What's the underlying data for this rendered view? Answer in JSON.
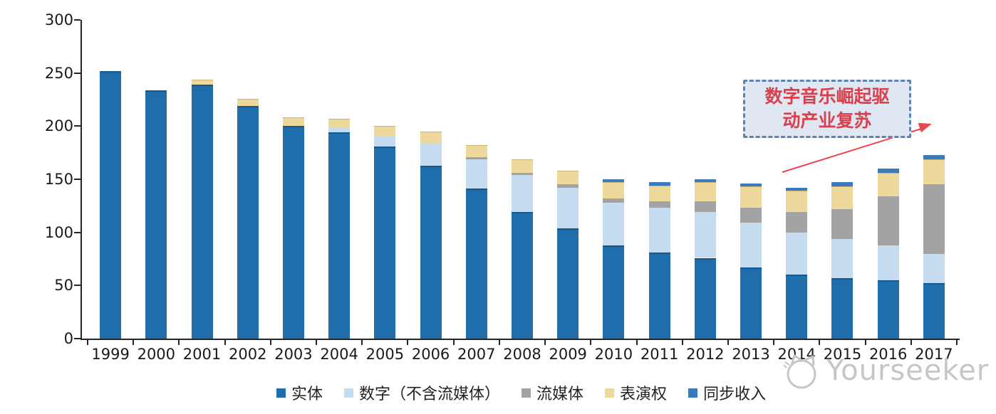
{
  "chart_data": {
    "type": "bar",
    "stacked": true,
    "title": "",
    "xlabel": "",
    "ylabel": "",
    "categories": [
      "1999",
      "2000",
      "2001",
      "2002",
      "2003",
      "2004",
      "2005",
      "2006",
      "2007",
      "2008",
      "2009",
      "2010",
      "2011",
      "2012",
      "2013",
      "2014",
      "2015",
      "2016",
      "2017"
    ],
    "series": [
      {
        "name": "实体",
        "color": "#1F6DAB",
        "values": [
          252,
          234,
          239,
          219,
          200,
          194,
          181,
          163,
          141,
          119,
          104,
          88,
          81,
          76,
          67,
          60,
          57,
          55,
          52
        ]
      },
      {
        "name": "数字（不含流媒体）",
        "color": "#C5DBF0",
        "values": [
          0,
          0,
          0,
          0,
          0,
          4,
          9,
          21,
          28,
          35,
          38,
          40,
          42,
          43,
          42,
          40,
          37,
          33,
          28
        ]
      },
      {
        "name": "流媒体",
        "color": "#A3A3A3",
        "values": [
          0,
          0,
          0,
          0,
          0,
          0,
          0,
          0,
          2,
          2,
          3,
          4,
          6,
          10,
          14,
          19,
          28,
          46,
          65
        ]
      },
      {
        "name": "表演权",
        "color": "#EDD99C",
        "values": [
          0,
          0,
          5,
          7,
          8,
          9,
          10,
          11,
          11,
          13,
          13,
          15,
          15,
          18,
          20,
          20,
          21,
          22,
          24
        ]
      },
      {
        "name": "同步收入",
        "color": "#3A7CBB",
        "values": [
          0,
          0,
          0,
          0,
          0,
          0,
          0,
          0,
          0,
          0,
          0,
          3,
          3,
          3,
          3,
          3,
          4,
          4,
          4
        ]
      }
    ],
    "ylim": [
      0,
      300
    ],
    "yticks": [
      0,
      50,
      100,
      150,
      200,
      250,
      300
    ],
    "grid": false,
    "legend_position": "bottom",
    "axis_color": "#262626"
  },
  "annotation": {
    "line1": "数字音乐崛起驱",
    "line2": "动产业复苏",
    "text_color": "#D9404E",
    "box_border_color": "#5F83AC",
    "box_fill_color": "#DEE7F2",
    "arrow_color": "#E8474F"
  },
  "watermark": {
    "text": "Yourseeker",
    "color": "#C6C6C6"
  }
}
